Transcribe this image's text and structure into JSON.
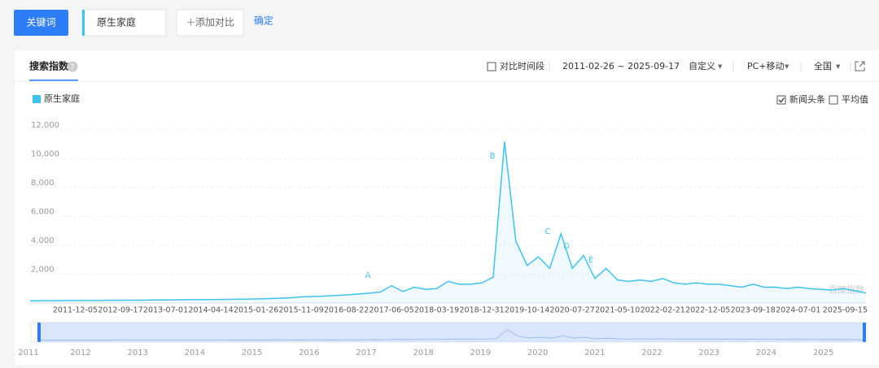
{
  "toolbar": {
    "keyword_button": "关键词",
    "keyword": "原生家庭",
    "add_compare": "添加对比",
    "confirm": "确定"
  },
  "panel": {
    "tab": "搜索指数",
    "compare_period": "对比时间段",
    "date_range": "2011-02-26 ~ 2025-09-17",
    "custom": "自定义",
    "device": "PC+移动",
    "region": "全国",
    "news": "新闻头条",
    "average": "平均值",
    "watermark": "百度指数"
  },
  "chart_data": {
    "type": "line",
    "categories": [
      null,
      null,
      null,
      null,
      "2011-12-05",
      null,
      null,
      null,
      "2012-09-17",
      null,
      null,
      null,
      "2013-07-01",
      null,
      null,
      null,
      "2014-04-14",
      null,
      null,
      null,
      "2015-01-26",
      null,
      null,
      null,
      "2015-11-09",
      null,
      null,
      null,
      "2016-08-22",
      null,
      null,
      null,
      "2017-06-05",
      null,
      null,
      null,
      "2018-03-19",
      null,
      null,
      null,
      "2018-12-31",
      null,
      null,
      null,
      "2019-10-14",
      null,
      null,
      null,
      "2020-07-27",
      null,
      null,
      null,
      "2021-05-10",
      null,
      null,
      null,
      "2022-02-21",
      null,
      null,
      null,
      "2022-12-05",
      null,
      null,
      null,
      "2023-09-18",
      null,
      null,
      null,
      "2024-07-01",
      null,
      null,
      null,
      null,
      null,
      "2025-09-15"
    ],
    "series": [
      {
        "name": "原生家庭",
        "color": "#3ec3f0",
        "values": [
          150,
          160,
          160,
          170,
          170,
          180,
          180,
          190,
          190,
          200,
          200,
          210,
          210,
          220,
          230,
          230,
          240,
          250,
          260,
          270,
          280,
          300,
          330,
          360,
          420,
          450,
          480,
          520,
          560,
          620,
          680,
          760,
          1200,
          800,
          1100,
          950,
          1000,
          1500,
          1300,
          1300,
          1400,
          1800,
          11200,
          4300,
          2600,
          3200,
          2400,
          4800,
          2400,
          3300,
          1700,
          2400,
          1600,
          1500,
          1600,
          1500,
          1700,
          1400,
          1300,
          1400,
          1300,
          1300,
          1200,
          1100,
          1300,
          1100,
          1100,
          1000,
          1100,
          1000,
          950,
          900,
          1000,
          850,
          700
        ]
      }
    ],
    "ylim": [
      0,
      12000
    ],
    "yticks": [
      {
        "value": 2000,
        "label": "2,000"
      },
      {
        "value": 4000,
        "label": "4,000"
      },
      {
        "value": 6000,
        "label": "6,000"
      },
      {
        "value": 8000,
        "label": "8,000"
      },
      {
        "value": 10000,
        "label": "10,000"
      },
      {
        "value": 12000,
        "label": "12,000"
      }
    ],
    "grid": true,
    "annotations": [
      "A",
      "B",
      "C",
      "D",
      "E"
    ]
  },
  "navigator": {
    "years": [
      "2011",
      "2012",
      "2013",
      "2014",
      "2015",
      "2016",
      "2017",
      "2018",
      "2019",
      "2020",
      "2021",
      "2022",
      "2023",
      "2024",
      "2025"
    ]
  }
}
